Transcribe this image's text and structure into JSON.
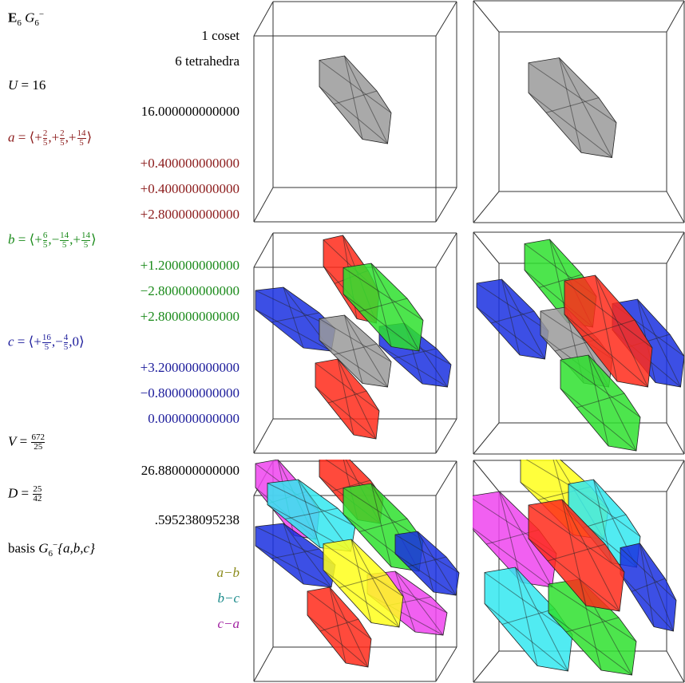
{
  "header": {
    "e": "E",
    "e_sub": "6",
    "g": "G",
    "g_sub": "6",
    "g_sup": "−"
  },
  "summary": {
    "cosets": "1 coset",
    "tetrahedra": "6 tetrahedra"
  },
  "u": {
    "symbol": "U",
    "relation": "= 16",
    "value": "16.000000000000"
  },
  "vectors": [
    {
      "symbol": "a",
      "eq": "=",
      "open": "⟨",
      "sep": ",",
      "close": "⟩",
      "color": "#8b1a1a",
      "terms": [
        {
          "sign": "+",
          "num": "2",
          "den": "5"
        },
        {
          "sign": "+",
          "num": "2",
          "den": "5"
        },
        {
          "sign": "+",
          "num": "14",
          "den": "5"
        }
      ],
      "components": [
        "+0.400000000000",
        "+0.400000000000",
        "+2.800000000000"
      ]
    },
    {
      "symbol": "b",
      "eq": "=",
      "open": "⟨",
      "sep": ",",
      "close": "⟩",
      "color": "#1a8a1a",
      "terms": [
        {
          "sign": "+",
          "num": "6",
          "den": "5"
        },
        {
          "sign": "−",
          "num": "14",
          "den": "5"
        },
        {
          "sign": "+",
          "num": "14",
          "den": "5"
        }
      ],
      "components": [
        "+1.200000000000",
        "−2.800000000000",
        "+2.800000000000"
      ]
    },
    {
      "symbol": "c",
      "eq": "=",
      "open": "⟨",
      "sep": ",",
      "close": "⟩",
      "color": "#1a1a9a",
      "terms": [
        {
          "sign": "+",
          "num": "16",
          "den": "5"
        },
        {
          "sign": "−",
          "num": "4",
          "den": "5"
        },
        {
          "value": "0"
        }
      ],
      "components": [
        "+3.200000000000",
        "−0.800000000000",
        "0.000000000000"
      ]
    }
  ],
  "v": {
    "symbol": "V",
    "eq": "=",
    "num": "672",
    "den": "25",
    "value": "26.880000000000"
  },
  "d": {
    "symbol": "D",
    "eq": "=",
    "num": "25",
    "den": "42",
    "value": ".595238095238"
  },
  "basis": {
    "word": "basis",
    "g": "G",
    "g_sub": "6",
    "g_sup": "−",
    "set": "{a,b,c}"
  },
  "legend": [
    {
      "label": "a−b",
      "color": "#8a8a1a"
    },
    {
      "label": "b−c",
      "color": "#1a8a8a"
    },
    {
      "label": "c−a",
      "color": "#a020a0"
    }
  ]
}
